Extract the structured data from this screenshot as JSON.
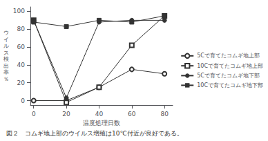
{
  "chart_data": {
    "type": "line",
    "title": "図２　コムギ地上部のウイルス増殖は10℃付近が良好である。",
    "xlabel": "温度処理日数",
    "ylabel": "ウ\nイ\nル\nス\n検\n出\n率\n％",
    "x": [
      0,
      20,
      40,
      60,
      80
    ],
    "series": [
      {
        "name": "5Cで育てたコムギ地上部",
        "values": [
          0,
          0,
          15,
          35,
          30
        ],
        "color": "#333333",
        "marker": "open-circle",
        "line_style": "solid"
      },
      {
        "name": "10Cで育てたコムギ地上部",
        "values": [
          90,
          -2,
          15,
          62,
          95
        ],
        "color": "#333333",
        "marker": "open-square",
        "line_style": "solid"
      },
      {
        "name": "5Cで育てたコムギ地下部",
        "values": [
          90,
          3,
          88,
          90,
          90
        ],
        "color": "#333333",
        "marker": "circle",
        "line_style": "solid"
      },
      {
        "name": "10Cで育てたコムギ地下部",
        "values": [
          88,
          83,
          90,
          88,
          95
        ],
        "color": "#333333",
        "marker": "square",
        "line_style": "solid"
      }
    ],
    "xlim": [
      -2,
      85
    ],
    "xticks": [
      0,
      20,
      40,
      60,
      80
    ],
    "ylim": [
      -5,
      105
    ],
    "yticks": [
      0,
      20,
      40,
      60,
      80,
      100
    ],
    "grid": false,
    "legend": "right"
  }
}
